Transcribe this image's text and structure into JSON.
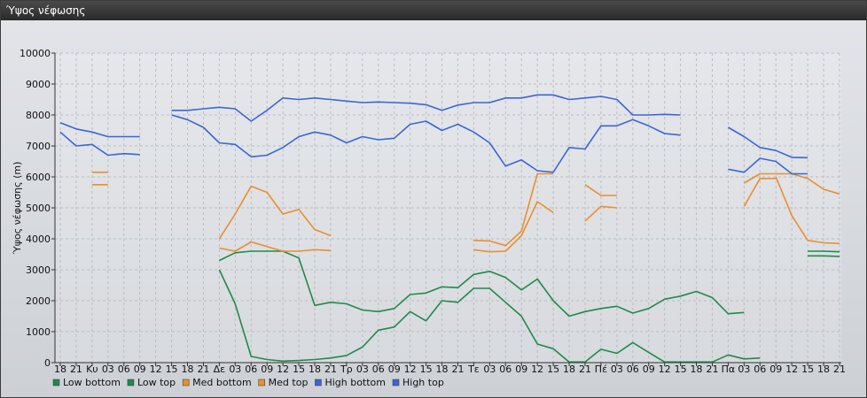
{
  "window": {
    "title": "Ύψος νέφωσης"
  },
  "chart_data": {
    "type": "line",
    "ylabel": "Ύψος νέφωσης (m)",
    "ylim": [
      0,
      10000
    ],
    "yticks": [
      0,
      1000,
      2000,
      3000,
      4000,
      5000,
      6000,
      7000,
      8000,
      9000,
      10000
    ],
    "grid": true,
    "legend_position": "bottom-left",
    "categories": [
      "18",
      "21",
      "Κυ",
      "03",
      "06",
      "09",
      "12",
      "15",
      "18",
      "21",
      "Δε",
      "03",
      "06",
      "09",
      "12",
      "15",
      "18",
      "21",
      "Τρ",
      "03",
      "06",
      "09",
      "12",
      "15",
      "18",
      "21",
      "Τε",
      "03",
      "06",
      "09",
      "12",
      "15",
      "18",
      "21",
      "Πέ",
      "03",
      "06",
      "09",
      "12",
      "15",
      "18",
      "21",
      "Πα",
      "03",
      "06",
      "09",
      "12",
      "15",
      "18",
      "21"
    ],
    "series": [
      {
        "name": "Low bottom",
        "color": "#1f8a4c",
        "values": [
          null,
          null,
          null,
          null,
          null,
          null,
          null,
          null,
          null,
          null,
          3000,
          1900,
          200,
          100,
          50,
          70,
          100,
          150,
          230,
          500,
          1050,
          1150,
          1650,
          1350,
          2000,
          1950,
          2400,
          2400,
          1950,
          1500,
          600,
          450,
          20,
          20,
          430,
          300,
          650,
          330,
          20,
          20,
          20,
          20,
          250,
          120,
          150,
          null,
          null,
          null,
          null,
          null
        ]
      },
      {
        "name": "Low top",
        "color": "#1f8a4c",
        "values": [
          null,
          null,
          null,
          null,
          null,
          null,
          null,
          null,
          null,
          null,
          3300,
          3550,
          3600,
          3600,
          3600,
          3380,
          1850,
          1950,
          1900,
          1700,
          1650,
          1750,
          2200,
          2250,
          2450,
          2420,
          2850,
          2950,
          2750,
          2350,
          2700,
          2000,
          1500,
          1650,
          1750,
          1820,
          1600,
          1750,
          2050,
          2150,
          2300,
          2100,
          1580,
          1620,
          null,
          null,
          null,
          null,
          null,
          null
        ]
      },
      {
        "name": "Low top",
        "color": "#1f8a4c",
        "values": [
          null,
          null,
          null,
          null,
          null,
          null,
          null,
          null,
          null,
          null,
          null,
          null,
          null,
          null,
          null,
          null,
          null,
          null,
          null,
          null,
          null,
          null,
          null,
          null,
          null,
          null,
          null,
          null,
          null,
          null,
          null,
          null,
          null,
          null,
          null,
          null,
          null,
          null,
          null,
          null,
          null,
          null,
          null,
          null,
          null,
          null,
          null,
          3600,
          3600,
          3580
        ]
      },
      {
        "name": "Low bottom",
        "color": "#1f8a4c",
        "values": [
          null,
          null,
          null,
          null,
          null,
          null,
          null,
          null,
          null,
          null,
          null,
          null,
          null,
          null,
          null,
          null,
          null,
          null,
          null,
          null,
          null,
          null,
          null,
          null,
          null,
          null,
          null,
          null,
          null,
          null,
          null,
          null,
          null,
          null,
          null,
          null,
          null,
          null,
          null,
          null,
          null,
          null,
          null,
          null,
          null,
          null,
          null,
          3450,
          3450,
          3430
        ]
      },
      {
        "name": "Med bottom",
        "color": "#e8902e",
        "values": [
          null,
          null,
          5750,
          5750,
          null,
          null,
          null,
          null,
          null,
          null,
          3700,
          3600,
          3900,
          3750,
          3600,
          3600,
          3650,
          3620,
          null,
          null,
          null,
          null,
          null,
          null,
          null,
          null,
          3650,
          3580,
          3600,
          4100,
          5200,
          4850,
          null,
          4570,
          5050,
          5000,
          null,
          null,
          null,
          null,
          null,
          null,
          null,
          5050,
          5950,
          5950,
          null,
          null,
          null,
          null
        ]
      },
      {
        "name": "Med top",
        "color": "#e8902e",
        "values": [
          null,
          null,
          6150,
          6150,
          null,
          null,
          null,
          null,
          null,
          null,
          4000,
          4800,
          5700,
          5500,
          4800,
          4950,
          4300,
          4100,
          null,
          null,
          null,
          null,
          null,
          null,
          null,
          null,
          3950,
          3930,
          3780,
          4250,
          6100,
          6100,
          null,
          5750,
          5400,
          5400,
          null,
          null,
          null,
          null,
          null,
          null,
          null,
          5800,
          6100,
          6100,
          6100,
          5950,
          5600,
          5450
        ]
      },
      {
        "name": "Med bottom",
        "color": "#e8902e",
        "values": [
          null,
          null,
          null,
          null,
          null,
          null,
          null,
          null,
          null,
          null,
          null,
          null,
          null,
          null,
          null,
          null,
          null,
          null,
          null,
          null,
          null,
          null,
          null,
          null,
          null,
          null,
          null,
          null,
          null,
          null,
          null,
          null,
          null,
          null,
          null,
          null,
          null,
          null,
          null,
          null,
          null,
          null,
          null,
          null,
          null,
          6000,
          4750,
          3950,
          3870,
          3850
        ]
      },
      {
        "name": "High bottom",
        "color": "#3a66d6",
        "values": [
          7450,
          7000,
          7050,
          6700,
          6750,
          6720,
          null,
          8000,
          7850,
          7600,
          7100,
          7050,
          6650,
          6700,
          6950,
          7300,
          7450,
          7350,
          7100,
          7300,
          7200,
          7250,
          7700,
          7800,
          7500,
          7700,
          7450,
          7100,
          6350,
          6550,
          6200,
          6150,
          6950,
          6900,
          7650,
          7650,
          7850,
          7650,
          7400,
          7350,
          null,
          null,
          6250,
          6150,
          6600,
          6500,
          6100,
          6100,
          null,
          null
        ]
      },
      {
        "name": "High top",
        "color": "#3a66d6",
        "values": [
          7750,
          7550,
          7450,
          7300,
          7300,
          7300,
          null,
          8150,
          8150,
          8200,
          8250,
          8200,
          7800,
          8150,
          8550,
          8500,
          8550,
          8500,
          8450,
          8400,
          8420,
          8400,
          8380,
          8330,
          8150,
          8320,
          8400,
          8400,
          8550,
          8550,
          8650,
          8650,
          8500,
          8550,
          8600,
          8500,
          8000,
          8000,
          8020,
          8000,
          null,
          null,
          7600,
          7300,
          6950,
          6850,
          6630,
          6620,
          null,
          null
        ]
      }
    ]
  }
}
